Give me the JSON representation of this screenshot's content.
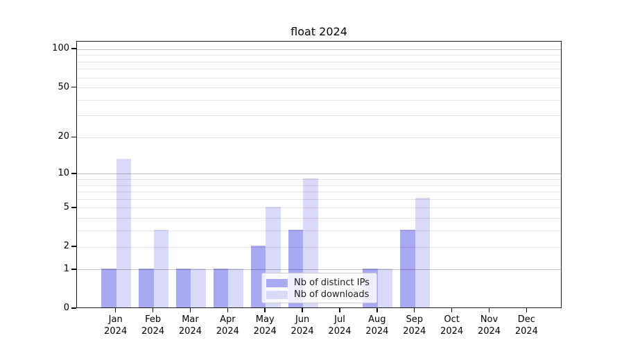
{
  "figure": {
    "background": "#ffffff"
  },
  "colors": {
    "axis": "#1a1a1a",
    "text": "#000000",
    "grid_major": "#c0c0c0",
    "grid_minor": "#e4e4e4",
    "legend_border": "#cccccc"
  },
  "chart_data": {
    "type": "bar",
    "title": "float 2024",
    "xlabel": "",
    "ylabel": "",
    "categories": [
      "Jan",
      "Feb",
      "Mar",
      "Apr",
      "May",
      "Jun",
      "Jul",
      "Aug",
      "Sep",
      "Oct",
      "Nov",
      "Dec"
    ],
    "category_year": "2024",
    "series": [
      {
        "name": "Nb of distinct IPs",
        "color": "#a8a8f3",
        "values": [
          1,
          1,
          1,
          1,
          2,
          3,
          0,
          1,
          3,
          0,
          0,
          0
        ]
      },
      {
        "name": "Nb of downloads",
        "color": "#d9d9f8",
        "values": [
          13,
          3,
          1,
          1,
          5,
          9,
          0,
          1,
          6,
          0,
          0,
          0
        ]
      }
    ],
    "y_scale": "log1p",
    "y_ticks": [
      0,
      1,
      2,
      5,
      10,
      20,
      50,
      100
    ],
    "y_major_grid": [
      1,
      10,
      100
    ],
    "y_minor_grid": [
      2,
      3,
      4,
      5,
      6,
      7,
      8,
      9,
      20,
      30,
      40,
      50,
      60,
      70,
      80,
      90
    ],
    "y_top": 115,
    "grid": true,
    "legend_position": "lower center"
  }
}
